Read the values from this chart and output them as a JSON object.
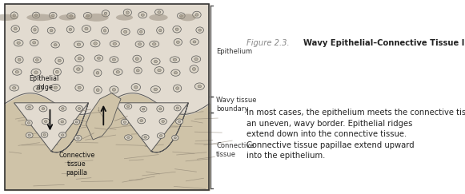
{
  "figure_label": "Figure 2.3.",
  "figure_title_bold": "Wavy Epithelial–Connective Tissue Interface.",
  "figure_body": "In most cases, the epithelium meets the connective tissue at an uneven, wavy border. Epithelial ridges extend down into the connective tissue. Connective tissue papillae extend upward into the epithelium.",
  "label_epithelium": "Epithelium",
  "label_wavy_tissue": "Wavy tissue\nboundary",
  "label_connective": "Connective\ntissue",
  "label_epithelial_ridge": "Epithelial\nridge",
  "label_connective_papilla": "Connective\ntissue\npapilla",
  "bg_color": "#ffffff",
  "illustration_bg": "#f0ece4",
  "connective_tissue_color": "#cfc3a8",
  "epithelium_color": "#e2dbd0",
  "cell_color": "#ddd6c8",
  "cell_border_color": "#555555",
  "nucleus_color": "#b8b0a0",
  "fiber_color": "#8a8070",
  "dark_patch_color": "#9a9080",
  "brace_color": "#333333",
  "label_color": "#333333",
  "text_color": "#222222",
  "title_color": "#888888",
  "arrow_color": "#111111"
}
